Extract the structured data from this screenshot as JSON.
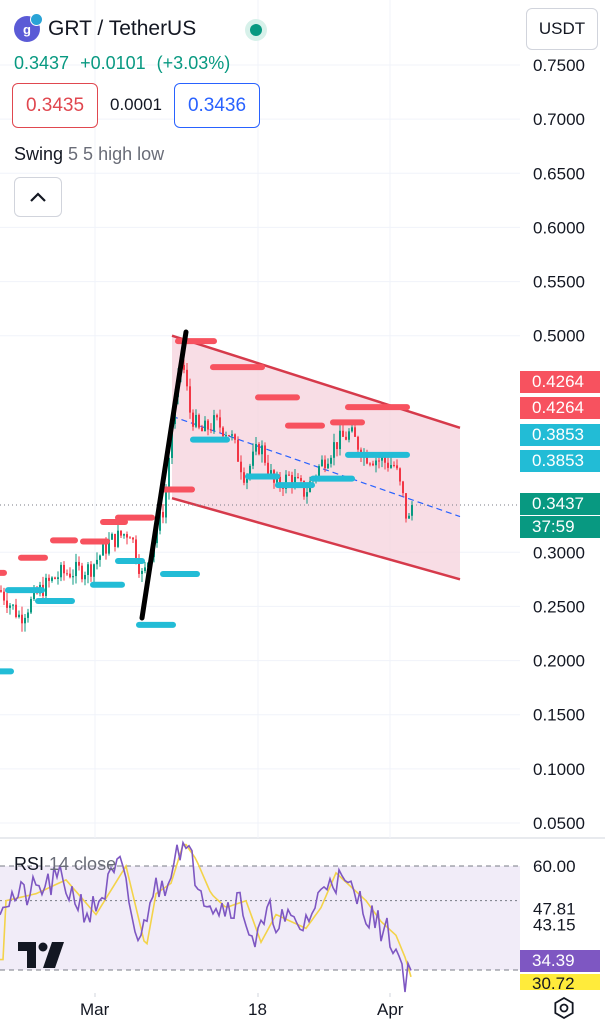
{
  "header": {
    "symbol": "GRT / TetherUS",
    "logo_text": "g",
    "last_price": "0.3437",
    "change": "+0.0101",
    "change_pct": "(+3.03%)",
    "bid": "0.3435",
    "spread": "0.0001",
    "ask": "0.3436",
    "currency_button": "USDT"
  },
  "indicator": {
    "name": "Swing",
    "params": "5 5 high low"
  },
  "rsi": {
    "name": "RSI",
    "params": "14 close",
    "scale_labels": [
      "60.00",
      "47.81",
      "43.15",
      "34.39",
      "30.72"
    ],
    "badge_colors": {
      "34.39": "#7e57c2",
      "30.72": "#ffeb3b"
    }
  },
  "price_scale": [
    "0.7500",
    "0.7000",
    "0.6500",
    "0.6000",
    "0.5500",
    "0.5000",
    "0.3000",
    "0.2500",
    "0.2000",
    "0.1500",
    "0.1000",
    "0.0500"
  ],
  "price_labels": {
    "resistance_1": "0.4264",
    "resistance_2": "0.4264",
    "support_1": "0.3853",
    "support_2": "0.3853",
    "last": "0.3437",
    "countdown": "37:59"
  },
  "x_axis": [
    "Mar",
    "18",
    "Apr"
  ],
  "colors": {
    "up": "#089981",
    "down": "#f23645",
    "swing_high": "#f7525f",
    "swing_low": "#22bcd6",
    "channel": "#d63a4b",
    "channel_fill": "#f6d2dc",
    "rsi_line": "#7e57c2",
    "rsi_ma": "#f3d34a",
    "rsi_fill": "#ede7f6"
  },
  "chart_data": {
    "type": "candlestick",
    "series": [
      {
        "name": "GRT / TetherUS",
        "last": 0.3437,
        "ylim": [
          0.05,
          0.75
        ],
        "log": false
      }
    ],
    "channel": {
      "upper_start": 0.5,
      "upper_end": 0.415,
      "lower_start": 0.35,
      "lower_end": 0.275
    },
    "resistance": 0.4264,
    "support": 0.3853,
    "rsi_levels": [
      60.0,
      47.81,
      43.15,
      34.39,
      30.72
    ]
  }
}
